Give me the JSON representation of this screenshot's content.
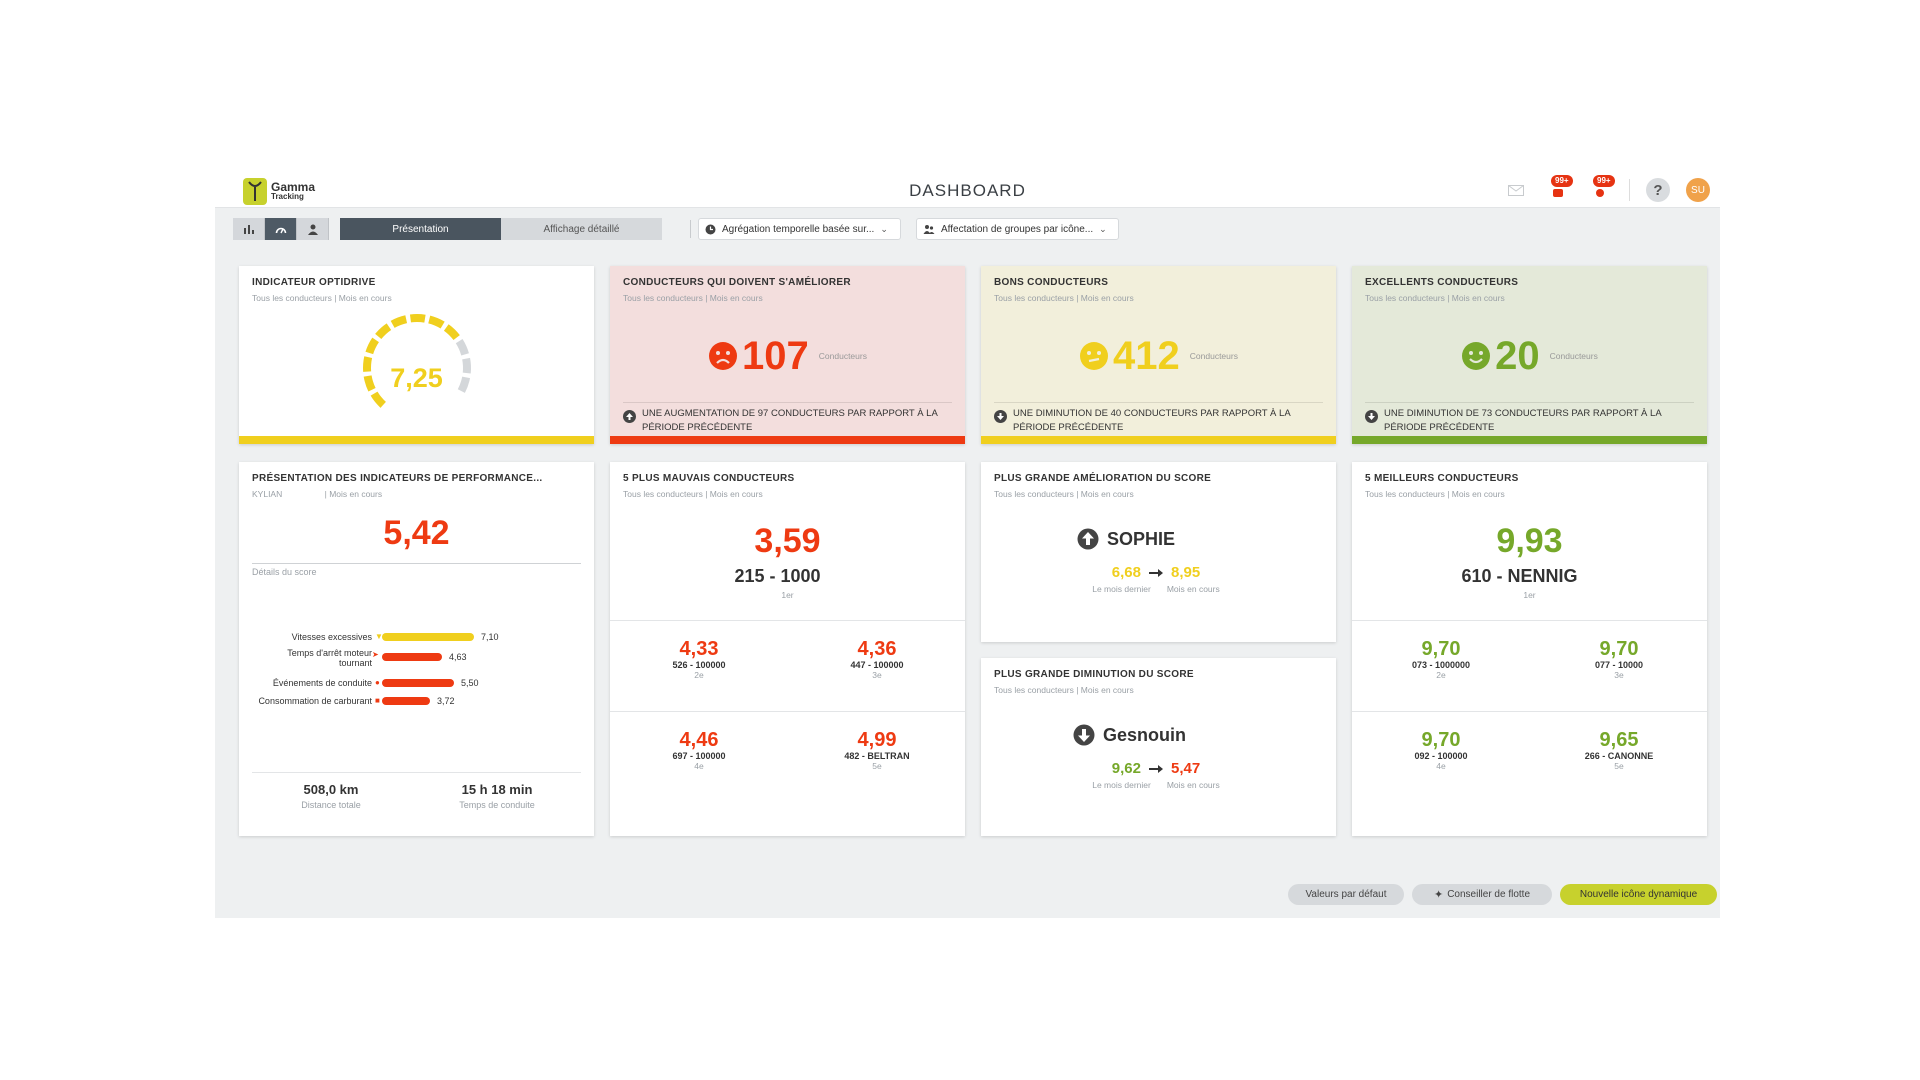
{
  "header": {
    "logo_line1": "Gamma",
    "logo_line2": "Tracking",
    "title": "DASHBOARD",
    "badge1": "99+",
    "badge2": "99+",
    "help": "?",
    "avatar": "SU"
  },
  "toolbar": {
    "tab_presentation": "Présentation",
    "tab_detail": "Affichage détaillé",
    "dropdown_time": "Agrégation temporelle basée sur...",
    "dropdown_group": "Affectation de groupes par icône..."
  },
  "optidrive": {
    "title": "INDICATEUR OPTIDRIVE",
    "sub": "Tous les conducteurs  |  Mois en cours",
    "value": "7,25",
    "gauge_fraction": 0.725
  },
  "improve": {
    "title": "CONDUCTEURS QUI DOIVENT S'AMÉLIORER",
    "sub": "Tous les conducteurs  |  Mois en cours",
    "count": "107",
    "unit": "Conducteurs",
    "change": "UNE AUGMENTATION DE 97 CONDUCTEURS PAR RAPPORT À LA PÉRIODE PRÉCÉDENTE"
  },
  "good": {
    "title": "BONS CONDUCTEURS",
    "sub": "Tous les conducteurs  |  Mois en cours",
    "count": "412",
    "unit": "Conducteurs",
    "change": "UNE DIMINUTION DE 40 CONDUCTEURS PAR RAPPORT À LA PÉRIODE PRÉCÉDENTE"
  },
  "excellent": {
    "title": "EXCELLENTS CONDUCTEURS",
    "sub": "Tous les conducteurs  |  Mois en cours",
    "count": "20",
    "unit": "Conducteurs",
    "change": "UNE DIMINUTION DE 73 CONDUCTEURS PAR RAPPORT À LA PÉRIODE PRÉCÉDENTE"
  },
  "kpi": {
    "title": "PRÉSENTATION DES INDICATEURS DE PERFORMANCE...",
    "sub_name": "KYLIAN",
    "sub_period": "|  Mois en cours",
    "score": "5,42",
    "details_label": "Détails du score",
    "rows": [
      {
        "label": "Vitesses excessives",
        "value": "7,10",
        "fraction": 0.71,
        "color": "#f0cf1e"
      },
      {
        "label": "Temps d'arrêt moteur tournant",
        "value": "4,63",
        "fraction": 0.463,
        "color": "#ee3a12"
      },
      {
        "label": "Événements de conduite",
        "value": "5,50",
        "fraction": 0.55,
        "color": "#ee3a12"
      },
      {
        "label": "Consommation de carburant",
        "value": "3,72",
        "fraction": 0.372,
        "color": "#ee3a12"
      }
    ],
    "distance": "508,0 km",
    "distance_label": "Distance totale",
    "time": "15 h 18 min",
    "time_label": "Temps de conduite"
  },
  "worst": {
    "title": "5 PLUS MAUVAIS CONDUCTEURS",
    "sub": "Tous les conducteurs  |  Mois en cours",
    "top_score": "3,59",
    "top_id": "215 - 1000",
    "top_rank": "1er",
    "others": [
      {
        "score": "4,33",
        "id": "526 - 100000",
        "rank": "2e"
      },
      {
        "score": "4,36",
        "id": "447 - 100000",
        "rank": "3e"
      },
      {
        "score": "4,46",
        "id": "697 - 100000",
        "rank": "4e"
      },
      {
        "score": "4,99",
        "id": "482 - BELTRAN",
        "rank": "5e"
      }
    ]
  },
  "best_improve": {
    "title": "PLUS GRANDE AMÉLIORATION DU SCORE",
    "sub": "Tous les conducteurs  |  Mois en cours",
    "name": "SOPHIE",
    "from": "6,68",
    "to": "8,95",
    "from_label": "Le mois dernier",
    "to_label": "Mois en cours"
  },
  "worst_decline": {
    "title": "PLUS GRANDE DIMINUTION DU SCORE",
    "sub": "Tous les conducteurs  |  Mois en cours",
    "name": "Gesnouin",
    "from": "9,62",
    "to": "5,47",
    "from_label": "Le mois dernier",
    "to_label": "Mois en cours"
  },
  "best": {
    "title": "5 MEILLEURS CONDUCTEURS",
    "sub": "Tous les conducteurs  |  Mois en cours",
    "top_score": "9,93",
    "top_id": "610 - NENNIG",
    "top_rank": "1er",
    "others": [
      {
        "score": "9,70",
        "id": "073 - 1000000",
        "rank": "2e"
      },
      {
        "score": "9,70",
        "id": "077 - 10000",
        "rank": "3e"
      },
      {
        "score": "9,70",
        "id": "092 - 100000",
        "rank": "4e"
      },
      {
        "score": "9,65",
        "id": "266 - CANONNE",
        "rank": "5e"
      }
    ]
  },
  "footer": {
    "defaults": "Valeurs par défaut",
    "advisor": "Conseiller de flotte",
    "new_icon": "Nouvelle icône dynamique"
  },
  "colors": {
    "red": "#ee3a12",
    "yellow": "#f0cf1e",
    "green": "#76a82a"
  }
}
